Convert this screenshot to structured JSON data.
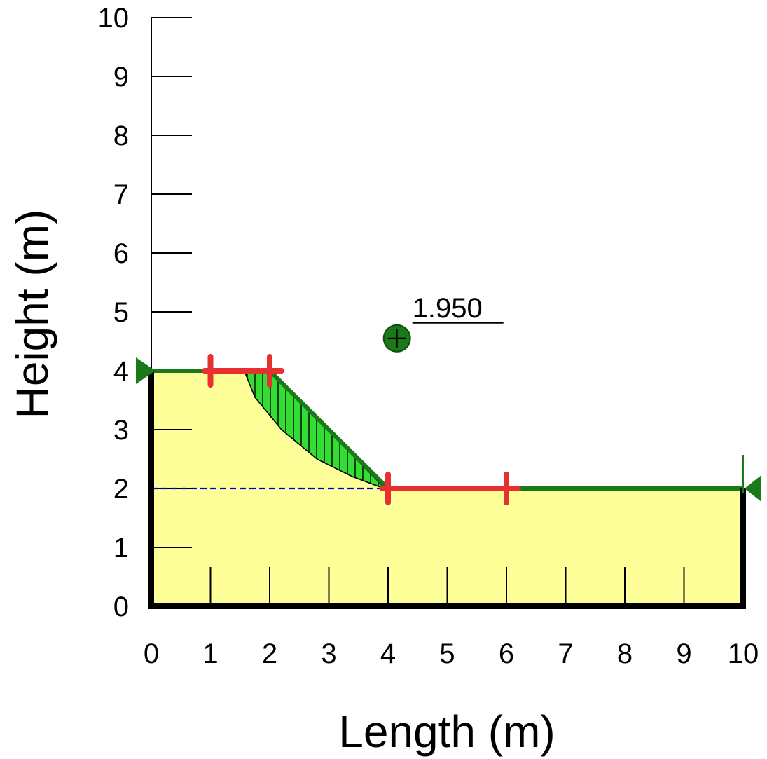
{
  "chart_data": {
    "type": "slope-stability",
    "xlabel": "Length (m)",
    "ylabel": "Height (m)",
    "xlim": [
      0,
      10
    ],
    "ylim": [
      0,
      10
    ],
    "x_ticks": [
      "0",
      "1",
      "2",
      "3",
      "4",
      "5",
      "6",
      "7",
      "8",
      "9",
      "10"
    ],
    "y_ticks": [
      "0",
      "1",
      "2",
      "3",
      "4",
      "5",
      "6",
      "7",
      "8",
      "9",
      "10"
    ],
    "ground_profile": [
      [
        0,
        4
      ],
      [
        2,
        4
      ],
      [
        4,
        2
      ],
      [
        10,
        2
      ]
    ],
    "water_table": [
      [
        0,
        2
      ],
      [
        10,
        2
      ]
    ],
    "slip_surface": [
      [
        1.57,
        4
      ],
      [
        1.75,
        3.55
      ],
      [
        2.2,
        3
      ],
      [
        2.8,
        2.5
      ],
      [
        3.4,
        2.2
      ],
      [
        3.8,
        2.05
      ],
      [
        3.95,
        2
      ]
    ],
    "entry_range": [
      [
        0.9,
        4
      ],
      [
        2.2,
        4
      ]
    ],
    "exit_range": [
      [
        3.9,
        2
      ],
      [
        6.2,
        2
      ]
    ],
    "entry_ticks": [
      [
        1,
        4
      ],
      [
        2,
        4
      ]
    ],
    "exit_ticks": [
      [
        4,
        2
      ],
      [
        6,
        2
      ]
    ],
    "slip_centre": {
      "x": 4.15,
      "y": 4.55
    },
    "factor_of_safety": "1.950",
    "colors": {
      "soil": "#ffff99",
      "slip_mass": "#33dd33",
      "ground_line": "#1a7a1a",
      "water_table": "#0000cc",
      "range_marker": "#e83030",
      "boundary": "#000000",
      "centre": "#1a7a1a"
    }
  }
}
